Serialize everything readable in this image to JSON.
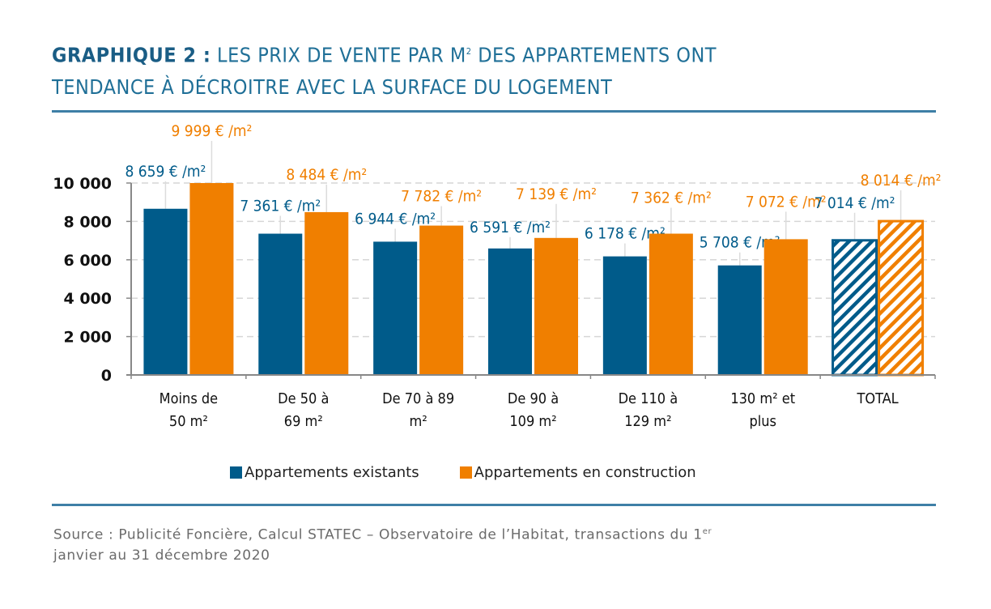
{
  "title": {
    "lead": "GRAPHIQUE 2 :",
    "text_before_sup": " LES PRIX DE VENTE PAR M",
    "sup": "2",
    "text_after_sup": " DES APPARTEMENTS ONT",
    "line2": "TENDANCE À DÉCROITRE AVEC LA SURFACE DU LOGEMENT"
  },
  "colors": {
    "existing": "#005b8a",
    "construction": "#f07f00",
    "title": "#1f6f97",
    "rule": "#3e7fa6"
  },
  "legend": [
    {
      "label": "Appartements existants",
      "color": "#005b8a"
    },
    {
      "label": "Appartements en construction",
      "color": "#f07f00"
    }
  ],
  "source": {
    "text": "Source : Publicité Foncière, Calcul STATEC – Observatoire de l’Habitat, transactions du 1",
    "sup": "er",
    "line2": "janvier au 31 décembre 2020"
  },
  "chart_data": {
    "type": "bar",
    "title": "GRAPHIQUE 2 : LES PRIX DE VENTE PAR M² DES APPARTEMENTS ONT TENDANCE À DÉCROITRE AVEC LA SURFACE DU LOGEMENT",
    "xlabel": "",
    "ylabel": "",
    "ylim": [
      0,
      10000
    ],
    "yticks": [
      0,
      2000,
      4000,
      6000,
      8000,
      10000
    ],
    "ytick_labels": [
      "0",
      "2 000",
      "4 000",
      "6 000",
      "8 000",
      "10 000"
    ],
    "grid": true,
    "legend_position": "bottom",
    "categories": [
      [
        "Moins de",
        "50 m²"
      ],
      [
        "De 50 à",
        "69 m²"
      ],
      [
        "De 70 à 89",
        "m²"
      ],
      [
        "De 90 à",
        "109 m²"
      ],
      [
        "De 110 à",
        "129 m²"
      ],
      [
        "130 m² et",
        "plus"
      ],
      [
        "TOTAL"
      ]
    ],
    "series": [
      {
        "name": "Appartements existants",
        "color": "#005b8a",
        "values": [
          8659,
          7361,
          6944,
          6591,
          6178,
          5708,
          7014
        ],
        "labels": [
          "8 659 € /m²",
          "7 361 € /m²",
          "6 944 € /m²",
          "6 591 € /m²",
          "6 178 € /m²",
          "5 708 € /m²",
          "7 014 € /m²"
        ]
      },
      {
        "name": "Appartements en construction",
        "color": "#f07f00",
        "values": [
          9999,
          8484,
          7782,
          7139,
          7362,
          7072,
          8014
        ],
        "labels": [
          "9 999 € /m²",
          "8 484 € /m²",
          "7 782 € /m²",
          "7 139 € /m²",
          "7 362 € /m²",
          "7 072 € /m²",
          "8 014 € /m²"
        ]
      }
    ],
    "hatched_categories": [
      "TOTAL"
    ]
  }
}
